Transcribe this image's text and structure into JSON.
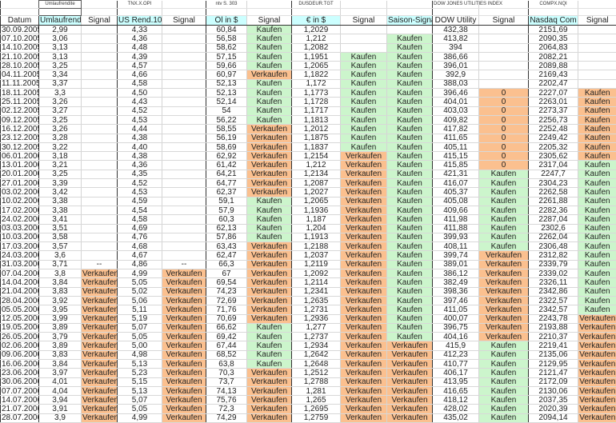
{
  "colors": {
    "kaufen": "#ccf5cc",
    "verkaufen": "#fbc08f",
    "header_highlight": "#ccffff"
  },
  "top_labels": [
    "",
    "Umlaufrendite",
    "",
    "TNX.X.OPI",
    "",
    "ntv S. 303",
    "",
    "DUSDEUR.TGT",
    "",
    "",
    "DOW JONES UTILITIES INDEX",
    "",
    "COMPX.NQI",
    ""
  ],
  "headers": [
    "Datum",
    "Umlaufrendite",
    "Signal",
    "US Rend.10J",
    "Signal",
    "Öl in $",
    "Signal",
    "€ in $",
    "Signal",
    "Saison-Signal",
    "DOW Utility",
    "Signal",
    "Nasdaq Com",
    "Signal"
  ],
  "highlighted_headers": [
    1,
    3,
    5,
    7,
    9,
    12
  ],
  "fill_overrides": [
    {
      "row": 7,
      "col": 13,
      "fill": "o"
    },
    {
      "row": 8,
      "col": 13,
      "fill": "o"
    },
    {
      "row": 9,
      "col": 13,
      "fill": "o"
    },
    {
      "row": 10,
      "col": 13,
      "fill": "o"
    },
    {
      "row": 11,
      "col": 13,
      "fill": "o"
    },
    {
      "row": 12,
      "col": 13,
      "fill": "o"
    },
    {
      "row": 13,
      "col": 13,
      "fill": "o"
    },
    {
      "row": 14,
      "col": 13,
      "fill": "o"
    }
  ],
  "rows": [
    [
      "30.09.2005",
      "2,99",
      "",
      "4,33",
      "",
      "60,84",
      "Kaufen",
      "1,2029",
      "",
      "",
      "432,38",
      "",
      "2151,69",
      ""
    ],
    [
      "07.10.2005",
      "3,06",
      "",
      "4,36",
      "",
      "56,58",
      "Kaufen",
      "1,212",
      "",
      "Kaufen",
      "413,82",
      "",
      "2090,35",
      ""
    ],
    [
      "14.10.2005",
      "3,13",
      "",
      "4,48",
      "",
      "58,62",
      "Kaufen",
      "1,2082",
      "",
      "Kaufen",
      "394",
      "",
      "2064,83",
      ""
    ],
    [
      "21.10.2005",
      "3,13",
      "",
      "4,39",
      "",
      "57,15",
      "Kaufen",
      "1,1951",
      "Kaufen",
      "Kaufen",
      "386,66",
      "",
      "2082,21",
      ""
    ],
    [
      "28.10.2005",
      "3,25",
      "",
      "4,57",
      "",
      "59,66",
      "Kaufen",
      "1,2065",
      "Kaufen",
      "Kaufen",
      "396,01",
      "",
      "2089,88",
      ""
    ],
    [
      "04.11.2005",
      "3,34",
      "",
      "4,66",
      "",
      "60,97",
      "Verkaufen",
      "1,1822",
      "Kaufen",
      "Kaufen",
      "392,9",
      "",
      "2169,43",
      ""
    ],
    [
      "11.11.2005",
      "3,37",
      "",
      "4,58",
      "",
      "52,13",
      "Kaufen",
      "1,172",
      "Kaufen",
      "Kaufen",
      "388,03",
      "",
      "2202,47",
      ""
    ],
    [
      "18.11.2005",
      "3,3",
      "",
      "4,50",
      "",
      "52,13",
      "Kaufen",
      "1,1773",
      "Kaufen",
      "Kaufen",
      "396,46",
      "0",
      "2227,07",
      "Kaufen"
    ],
    [
      "25.11.2005",
      "3,26",
      "",
      "4,43",
      "",
      "52,14",
      "Kaufen",
      "1,1728",
      "Kaufen",
      "Kaufen",
      "404,01",
      "0",
      "2263,01",
      "Kaufen"
    ],
    [
      "02.12.2005",
      "3,27",
      "",
      "4,52",
      "",
      "54",
      "Kaufen",
      "1,1717",
      "Kaufen",
      "Kaufen",
      "403,03",
      "0",
      "2273,37",
      "Kaufen"
    ],
    [
      "09.12.2005",
      "3,25",
      "",
      "4,53",
      "",
      "56,22",
      "Kaufen",
      "1,1813",
      "Kaufen",
      "Kaufen",
      "409,82",
      "0",
      "2256,73",
      "Kaufen"
    ],
    [
      "16.12.2005",
      "3,26",
      "",
      "4,44",
      "",
      "58,55",
      "Verkaufen",
      "1,2012",
      "Kaufen",
      "Kaufen",
      "417,82",
      "0",
      "2252,48",
      "Kaufen"
    ],
    [
      "23.12.2005",
      "3,28",
      "",
      "4,38",
      "",
      "56,19",
      "Verkaufen",
      "1,1875",
      "Kaufen",
      "Kaufen",
      "411,65",
      "0",
      "2249,42",
      "Kaufen"
    ],
    [
      "30.12.2005",
      "3,22",
      "",
      "4,40",
      "",
      "58,69",
      "Verkaufen",
      "1,1837",
      "Kaufen",
      "Kaufen",
      "405,11",
      "0",
      "2205,32",
      "Kaufen"
    ],
    [
      "06.01.2006",
      "3,18",
      "",
      "4,38",
      "",
      "62,92",
      "Verkaufen",
      "1,2154",
      "Verkaufen",
      "Kaufen",
      "415,15",
      "0",
      "2305,62",
      "Kaufen"
    ],
    [
      "13.01.2006",
      "3,21",
      "",
      "4,36",
      "",
      "61,42",
      "Verkaufen",
      "1,212",
      "Verkaufen",
      "Kaufen",
      "415,85",
      "0",
      "2317,04",
      "Kaufen"
    ],
    [
      "20.01.2006",
      "3,25",
      "",
      "4,35",
      "",
      "64,21",
      "Verkaufen",
      "1,2134",
      "Verkaufen",
      "Kaufen",
      "421,31",
      "Kaufen",
      "2247,7",
      "Kaufen"
    ],
    [
      "27.01.2006",
      "3,39",
      "",
      "4,52",
      "",
      "64,77",
      "Verkaufen",
      "1,2087",
      "Verkaufen",
      "Kaufen",
      "416,07",
      "Kaufen",
      "2304,23",
      "Kaufen"
    ],
    [
      "03.02.2006",
      "3,42",
      "",
      "4,53",
      "",
      "62,37",
      "Verkaufen",
      "1,2027",
      "Verkaufen",
      "Kaufen",
      "405,37",
      "Kaufen",
      "2262,58",
      "Kaufen"
    ],
    [
      "10.02.2006",
      "3,38",
      "",
      "4,59",
      "",
      "59,1",
      "Kaufen",
      "1,2065",
      "Verkaufen",
      "Kaufen",
      "405,08",
      "Kaufen",
      "2261,88",
      "Kaufen"
    ],
    [
      "17.02.2006",
      "3,38",
      "",
      "4,54",
      "",
      "57,9",
      "Kaufen",
      "1,1936",
      "Verkaufen",
      "Kaufen",
      "409,66",
      "Kaufen",
      "2282,36",
      "Kaufen"
    ],
    [
      "24.02.2006",
      "3,41",
      "",
      "4,58",
      "",
      "60,3",
      "Kaufen",
      "1,187",
      "Verkaufen",
      "Kaufen",
      "411,98",
      "Kaufen",
      "2287,04",
      "Kaufen"
    ],
    [
      "03.03.2006",
      "3,51",
      "",
      "4,69",
      "",
      "62,13",
      "Kaufen",
      "1,204",
      "Verkaufen",
      "Kaufen",
      "411,88",
      "Kaufen",
      "2302,6",
      "Kaufen"
    ],
    [
      "10.03.2006",
      "3,58",
      "",
      "4,76",
      "",
      "57,86",
      "Kaufen",
      "1,1913",
      "Verkaufen",
      "Kaufen",
      "399,93",
      "Kaufen",
      "2262,04",
      "Kaufen"
    ],
    [
      "17.03.2006",
      "3,57",
      "",
      "4,68",
      "",
      "63,43",
      "Verkaufen",
      "1,2188",
      "Verkaufen",
      "Kaufen",
      "408,11",
      "Kaufen",
      "2306,48",
      "Kaufen"
    ],
    [
      "24.03.2006",
      "3,6",
      "",
      "4,67",
      "",
      "62,47",
      "Verkaufen",
      "1,2037",
      "Verkaufen",
      "Kaufen",
      "399,74",
      "Verkaufen",
      "2312,82",
      "Kaufen"
    ],
    [
      "31.03.2006",
      "3,71",
      "--",
      "4,86",
      "--",
      "66,3",
      "Verkaufen",
      "1,2119",
      "Verkaufen",
      "Kaufen",
      "389,01",
      "Verkaufen",
      "2339,79",
      "Kaufen"
    ],
    [
      "07.04.2006",
      "3,8",
      "Verkaufen",
      "4,99",
      "Verkaufen",
      "67",
      "Verkaufen",
      "1,2092",
      "Verkaufen",
      "Kaufen",
      "386,12",
      "Verkaufen",
      "2339,02",
      "Kaufen"
    ],
    [
      "14.04.2006",
      "3,84",
      "Verkaufen",
      "5,05",
      "Verkaufen",
      "69,54",
      "Verkaufen",
      "1,2114",
      "Verkaufen",
      "Kaufen",
      "382,49",
      "Verkaufen",
      "2326,11",
      "Kaufen"
    ],
    [
      "21.04.2006",
      "3,83",
      "Verkaufen",
      "5,02",
      "Verkaufen",
      "74,23",
      "Verkaufen",
      "1,2341",
      "Verkaufen",
      "Kaufen",
      "398,36",
      "Verkaufen",
      "2342,86",
      "Kaufen"
    ],
    [
      "28.04.2006",
      "3,92",
      "Verkaufen",
      "5,06",
      "Verkaufen",
      "72,69",
      "Verkaufen",
      "1,2635",
      "Verkaufen",
      "Kaufen",
      "397,46",
      "Verkaufen",
      "2322,57",
      "Kaufen"
    ],
    [
      "05.05.2006",
      "3,95",
      "Verkaufen",
      "5,11",
      "Verkaufen",
      "71,76",
      "Verkaufen",
      "1,2731",
      "Verkaufen",
      "Kaufen",
      "411,05",
      "Verkaufen",
      "2342,57",
      "Kaufen"
    ],
    [
      "12.05.2006",
      "3,99",
      "Verkaufen",
      "5,19",
      "Verkaufen",
      "70,69",
      "Verkaufen",
      "1,2936",
      "Verkaufen",
      "Kaufen",
      "400,07",
      "Verkaufen",
      "2243,78",
      "Verkaufen"
    ],
    [
      "19.05.2006",
      "3,89",
      "Verkaufen",
      "5,07",
      "Verkaufen",
      "66,62",
      "Kaufen",
      "1,277",
      "Verkaufen",
      "Kaufen",
      "396,75",
      "Verkaufen",
      "2193,88",
      "Verkaufen"
    ],
    [
      "26.05.2006",
      "3,79",
      "Verkaufen",
      "5,05",
      "Verkaufen",
      "69,42",
      "Kaufen",
      "1,2737",
      "Verkaufen",
      "Kaufen",
      "404,16",
      "Verkaufen",
      "2210,37",
      "Verkaufen"
    ],
    [
      "02.06.2006",
      "3,89",
      "Verkaufen",
      "5,00",
      "Verkaufen",
      "67,44",
      "Kaufen",
      "1,2934",
      "Verkaufen",
      "Verkaufen",
      "415,9",
      "Kaufen",
      "2219,41",
      "Verkaufen"
    ],
    [
      "09.06.2006",
      "3,83",
      "Verkaufen",
      "4,98",
      "Verkaufen",
      "68,52",
      "Kaufen",
      "1,2642",
      "Verkaufen",
      "Verkaufen",
      "412,23",
      "Kaufen",
      "2135,06",
      "Verkaufen"
    ],
    [
      "16.06.2006",
      "3,84",
      "Verkaufen",
      "5,13",
      "Verkaufen",
      "63,8",
      "Kaufen",
      "1,2648",
      "Verkaufen",
      "Verkaufen",
      "410,77",
      "Kaufen",
      "2129,95",
      "Verkaufen"
    ],
    [
      "23.06.2006",
      "3,97",
      "Verkaufen",
      "5,23",
      "Verkaufen",
      "70,3",
      "Verkaufen",
      "1,2512",
      "Verkaufen",
      "Verkaufen",
      "406,17",
      "Kaufen",
      "2121,47",
      "Verkaufen"
    ],
    [
      "30.06.2006",
      "4,01",
      "Verkaufen",
      "5,15",
      "Verkaufen",
      "73,7",
      "Verkaufen",
      "1,2788",
      "Verkaufen",
      "Verkaufen",
      "413,95",
      "Kaufen",
      "2172,09",
      "Verkaufen"
    ],
    [
      "07.07.2006",
      "4,04",
      "Verkaufen",
      "5,13",
      "Verkaufen",
      "74,13",
      "Verkaufen",
      "1,281",
      "Verkaufen",
      "Verkaufen",
      "416,65",
      "Kaufen",
      "2130,06",
      "Verkaufen"
    ],
    [
      "14.07.2006",
      "3,94",
      "Verkaufen",
      "5,07",
      "Verkaufen",
      "75,76",
      "Verkaufen",
      "1,265",
      "Verkaufen",
      "Verkaufen",
      "418,12",
      "Kaufen",
      "2037,35",
      "Verkaufen"
    ],
    [
      "21.07.2006",
      "3,91",
      "Verkaufen",
      "5,05",
      "Verkaufen",
      "72,3",
      "Verkaufen",
      "1,2695",
      "Verkaufen",
      "Verkaufen",
      "428,02",
      "Kaufen",
      "2020,39",
      "Verkaufen"
    ],
    [
      "28.07.2006",
      "3,9",
      "Verkaufen",
      "4,99",
      "Verkaufen",
      "74,29",
      "Verkaufen",
      "1,2759",
      "Verkaufen",
      "Verkaufen",
      "435,02",
      "Kaufen",
      "2094,14",
      "Verkaufen"
    ]
  ]
}
